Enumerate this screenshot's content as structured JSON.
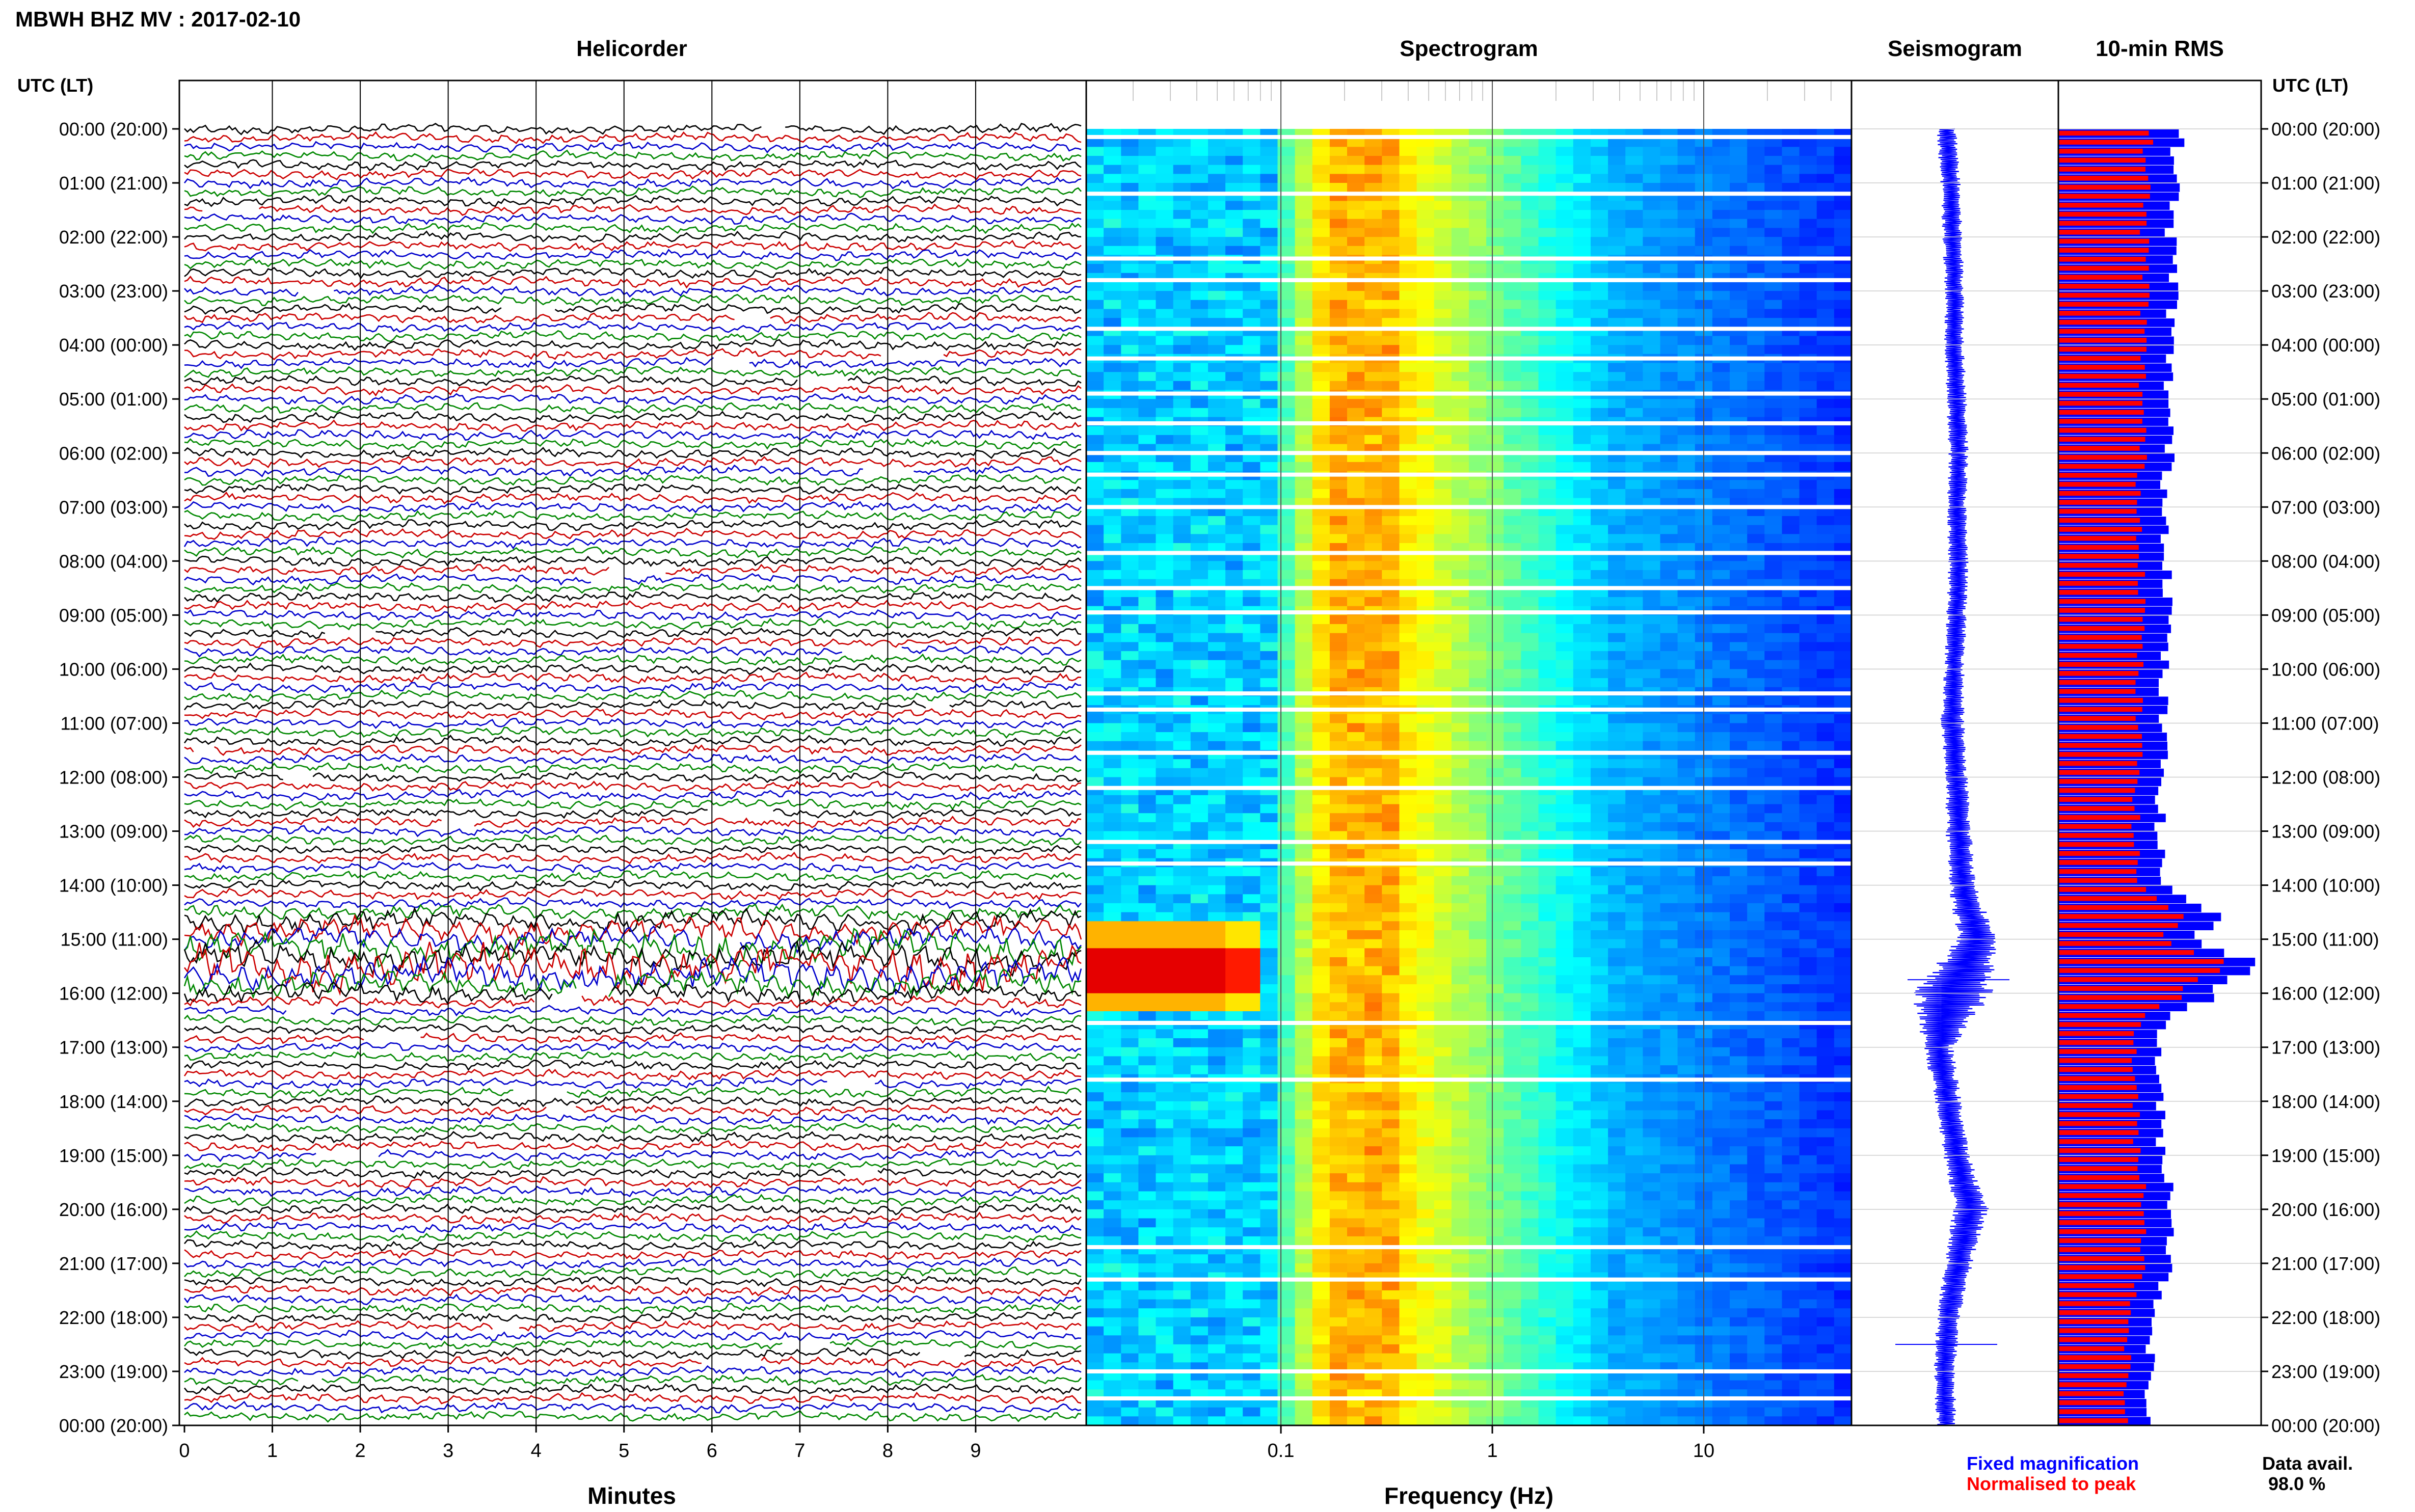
{
  "header": {
    "title": "MBWH BHZ MV : 2017-02-10",
    "panels": [
      "Helicorder",
      "Spectrogram",
      "Seismogram",
      "10-min RMS"
    ]
  },
  "time_axis": {
    "label_left": "UTC (LT)",
    "label_right": "UTC (LT)",
    "ticks": [
      "00:00 (20:00)",
      "01:00 (21:00)",
      "02:00 (22:00)",
      "03:00 (23:00)",
      "04:00 (00:00)",
      "05:00 (01:00)",
      "06:00 (02:00)",
      "07:00 (03:00)",
      "08:00 (04:00)",
      "09:00 (05:00)",
      "10:00 (06:00)",
      "11:00 (07:00)",
      "12:00 (08:00)",
      "13:00 (09:00)",
      "14:00 (10:00)",
      "15:00 (11:00)",
      "16:00 (12:00)",
      "17:00 (13:00)",
      "18:00 (14:00)",
      "19:00 (15:00)",
      "20:00 (16:00)",
      "21:00 (17:00)",
      "22:00 (18:00)",
      "23:00 (19:00)",
      "00:00 (20:00)"
    ]
  },
  "helicorder_axis": {
    "xlabel": "Minutes",
    "ticks": [
      "0",
      "1",
      "2",
      "3",
      "4",
      "5",
      "6",
      "7",
      "8",
      "9"
    ]
  },
  "spectrogram_axis": {
    "xlabel": "Frequency (Hz)",
    "ticks": [
      "0.1",
      "1",
      "10"
    ],
    "xscale": "log",
    "xlim_hz": [
      0.012,
      50
    ]
  },
  "footer": {
    "legend_fixed": "Fixed magnification",
    "legend_normalised": "Normalised to peak",
    "avail_label": "Data avail.",
    "avail_value": "98.0 %"
  },
  "colors": {
    "trace_black": "#000000",
    "trace_red": "#cc0000",
    "trace_blue": "#0000cc",
    "trace_green": "#008800",
    "rms_fixed": "#0000ff",
    "rms_normalised": "#ff0000",
    "grid": "#b8b8b8"
  },
  "chart_data": [
    {
      "type": "line",
      "panel": "Helicorder",
      "rows_per_hour": 6,
      "row_minutes": 10,
      "trace_color_cycle": [
        "black",
        "red",
        "blue",
        "green"
      ],
      "note_rows": "144 ten-minute traces 00:00-24:00 UTC; larger-amplitude event near 15:00-16:00 UTC; data gaps shown as blank segments",
      "event_rows_amplitude": [
        [
          14.8,
          3.0
        ],
        [
          15.2,
          4.0
        ],
        [
          15.5,
          5.0
        ],
        [
          15.8,
          3.0
        ]
      ]
    },
    {
      "type": "heatmap",
      "panel": "Spectrogram",
      "xscale": "log",
      "x_hz_range": [
        0.012,
        50
      ],
      "y_hours_range": [
        0,
        24
      ],
      "peak_band_hz": [
        0.15,
        0.4
      ],
      "event_hours": [
        15.5,
        16.0
      ],
      "event_band_hz": [
        0.012,
        0.08
      ],
      "gap_hours": [
        0.15,
        1.2,
        2.4,
        2.8,
        3.7,
        4.25,
        4.9,
        5.45,
        6.0,
        6.4,
        7.0,
        7.85,
        8.5,
        8.95,
        10.45,
        10.75,
        11.55,
        12.2,
        13.2,
        13.6,
        16.55,
        17.6,
        20.7,
        21.3,
        23.0,
        23.5
      ]
    },
    {
      "type": "line",
      "panel": "Seismogram",
      "xlabel": "",
      "ylabel": "",
      "x": [
        0,
        1,
        2,
        3,
        4,
        5,
        6,
        7,
        8,
        9,
        10,
        11,
        12,
        13,
        14,
        15,
        16,
        17,
        18,
        19,
        20,
        21,
        22,
        23,
        24
      ],
      "y_offset": [
        0,
        0.2,
        0.3,
        0.4,
        0.4,
        0.5,
        0.6,
        0.5,
        0.6,
        0.5,
        0.4,
        0.3,
        0.5,
        0.6,
        0.8,
        1.5,
        0.3,
        -0.4,
        0.1,
        0.5,
        1.2,
        0.6,
        0.1,
        -0.1,
        0
      ],
      "amplitude": [
        1,
        1,
        1,
        1,
        1,
        1,
        1,
        1,
        1,
        1,
        1,
        1.2,
        1.1,
        1.3,
        1.4,
        2.0,
        4.0,
        1.5,
        1.3,
        1.3,
        1.8,
        1.4,
        1.2,
        1.1,
        1
      ],
      "spikes_hours": [
        15.75,
        22.5
      ]
    },
    {
      "type": "bar",
      "panel": "10-min RMS",
      "orientation": "horizontal",
      "series": [
        {
          "name": "Fixed magnification",
          "color": "#0000ff"
        },
        {
          "name": "Normalised to peak",
          "color": "#ff0000"
        }
      ],
      "rms_keyframes_hours": [
        0,
        1,
        2,
        3,
        4,
        5,
        6,
        7,
        8,
        9,
        10,
        11,
        12,
        13,
        14,
        14.5,
        15,
        15.5,
        16,
        16.5,
        17,
        18,
        19,
        20,
        21,
        22,
        23,
        24
      ],
      "rms_keyframes_fixed": [
        0.6,
        0.58,
        0.56,
        0.58,
        0.55,
        0.55,
        0.55,
        0.53,
        0.55,
        0.55,
        0.52,
        0.52,
        0.52,
        0.5,
        0.52,
        0.78,
        0.7,
        1.0,
        0.78,
        0.52,
        0.5,
        0.5,
        0.52,
        0.58,
        0.55,
        0.48,
        0.45,
        0.45
      ],
      "rms_keyframes_normalised": [
        0.45,
        0.44,
        0.43,
        0.44,
        0.42,
        0.42,
        0.42,
        0.4,
        0.42,
        0.42,
        0.4,
        0.4,
        0.4,
        0.38,
        0.4,
        0.6,
        0.54,
        0.85,
        0.62,
        0.4,
        0.38,
        0.38,
        0.4,
        0.44,
        0.42,
        0.36,
        0.34,
        0.34
      ]
    }
  ]
}
